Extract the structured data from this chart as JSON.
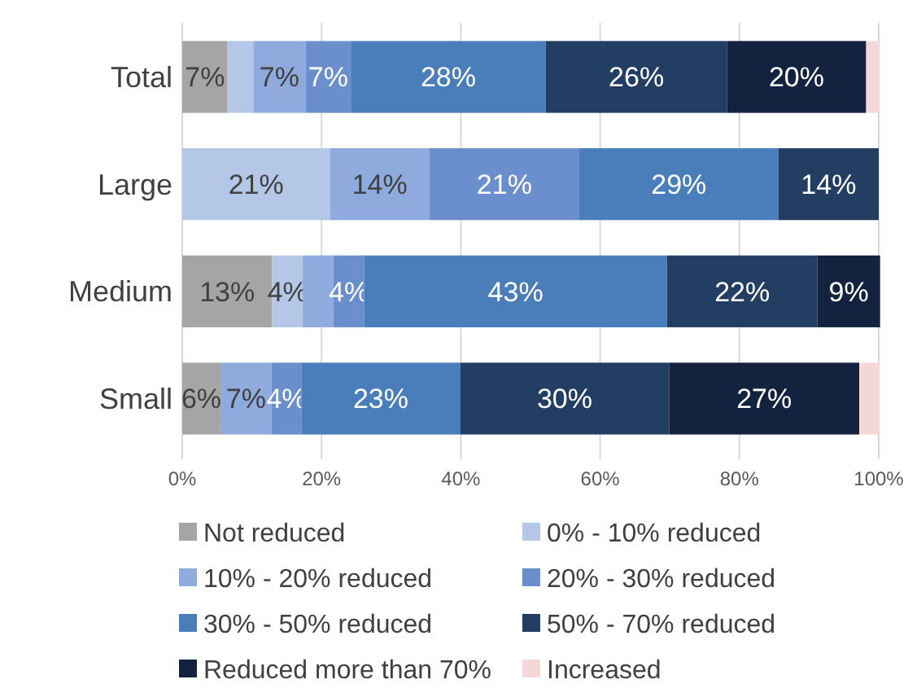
{
  "chart_data": {
    "type": "bar",
    "orientation": "horizontal",
    "stacked": true,
    "categories": [
      "Total",
      "Large",
      "Medium",
      "Small"
    ],
    "xlim": [
      0,
      100
    ],
    "xticks": [
      {
        "value": 0,
        "label": "0%"
      },
      {
        "value": 20,
        "label": "20%"
      },
      {
        "value": 40,
        "label": "40%"
      },
      {
        "value": 60,
        "label": "60%"
      },
      {
        "value": 80,
        "label": "80%"
      },
      {
        "value": 100,
        "label": "100%"
      }
    ],
    "grid": "x",
    "legend": "bottom",
    "series": [
      {
        "name": "Not reduced",
        "color": "#a5a5a5",
        "values": [
          6.5,
          0,
          12.9,
          5.5
        ],
        "value_labels": [
          "7%",
          null,
          "13%",
          "6%"
        ]
      },
      {
        "name": "0% - 10% reduced",
        "color": "#b4c7e7",
        "values": [
          3.7,
          21.2,
          4.4,
          0
        ],
        "value_labels": [
          null,
          "21%",
          "4%",
          null
        ]
      },
      {
        "name": "10% - 20% reduced",
        "color": "#8faadc",
        "values": [
          7.5,
          14.3,
          4.4,
          7.3
        ],
        "value_labels": [
          "7%",
          "14%",
          null,
          "7%"
        ]
      },
      {
        "name": "20% - 30% reduced",
        "color": "#6b8fcc",
        "values": [
          6.5,
          21.5,
          4.4,
          4.3
        ],
        "value_labels": [
          "7%",
          "21%",
          "4%",
          "4%"
        ]
      },
      {
        "name": "30% - 50% reduced",
        "color": "#4a7ebb",
        "values": [
          28,
          28.6,
          43.5,
          22.8
        ],
        "value_labels": [
          "28%",
          "29%",
          "43%",
          "23%"
        ]
      },
      {
        "name": "50% - 70% reduced",
        "color": "#233e63",
        "values": [
          26,
          14.4,
          21.6,
          30
        ],
        "value_labels": [
          "26%",
          "14%",
          "22%",
          "30%"
        ]
      },
      {
        "name": "Reduced more than 70%",
        "color": "#13233f",
        "values": [
          20,
          0,
          9,
          27.3
        ],
        "value_labels": [
          "20%",
          null,
          "9%",
          "27%"
        ]
      },
      {
        "name": "Increased",
        "color": "#f4d7d7",
        "values": [
          1.8,
          0,
          0,
          2.9
        ],
        "value_labels": [
          null,
          null,
          null,
          null
        ]
      }
    ]
  }
}
